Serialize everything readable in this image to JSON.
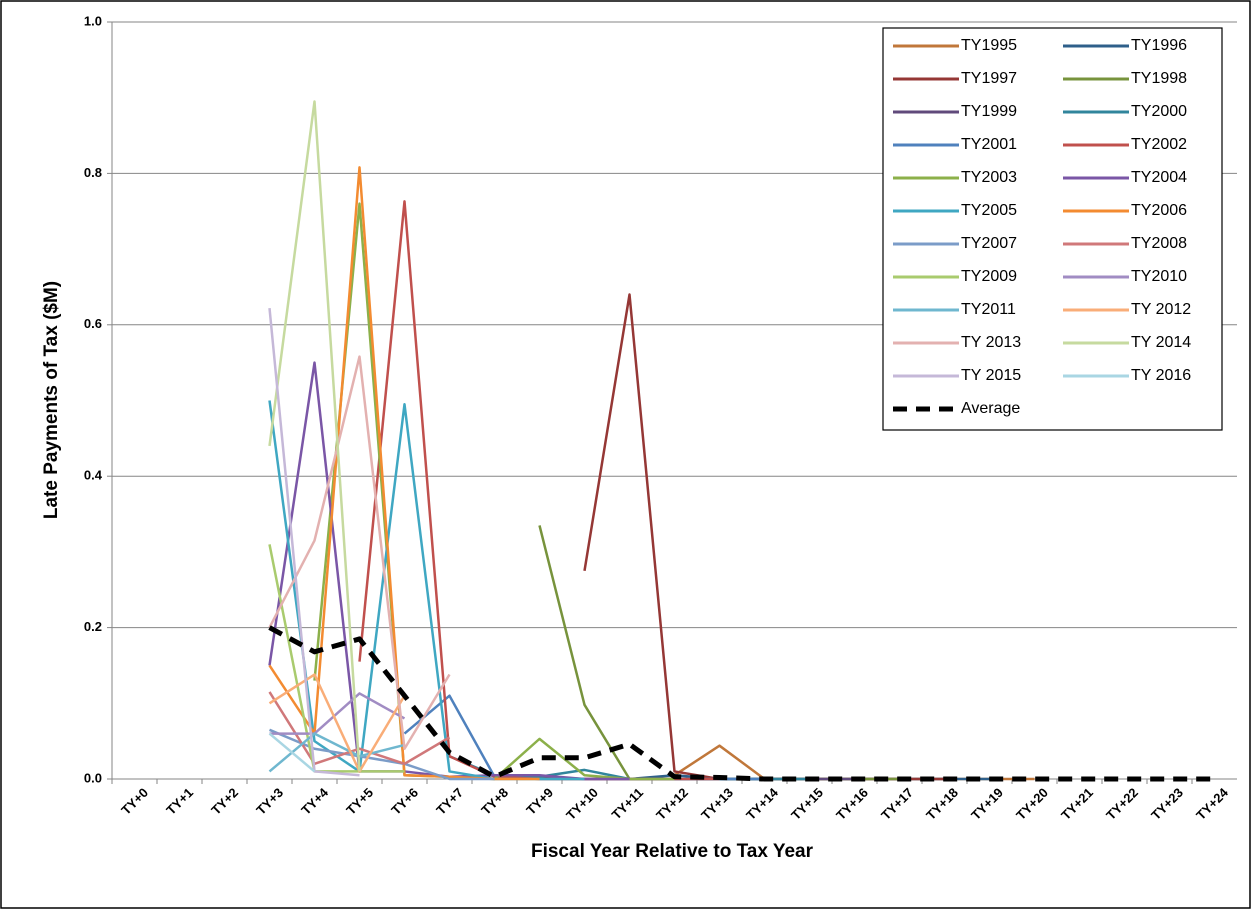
{
  "chart_data": {
    "type": "line",
    "y_label": "Late Payments of Tax ($M)",
    "x_label": "Fiscal Year Relative to Tax Year",
    "categories": [
      "TY+0",
      "TY+1",
      "TY+2",
      "TY+3",
      "TY+4",
      "TY+5",
      "TY+6",
      "TY+7",
      "TY+8",
      "TY+9",
      "TY+10",
      "TY+11",
      "TY+12",
      "TY+13",
      "TY+14",
      "TY+15",
      "TY+16",
      "TY+17",
      "TY+18",
      "TY+19",
      "TY+20",
      "TY+21",
      "TY+22",
      "TY+23",
      "TY+24"
    ],
    "ylim": [
      0,
      1
    ],
    "yticks": [
      {
        "value": 0,
        "label": "0.0"
      },
      0.2,
      0.4,
      0.6,
      0.8,
      {
        "value": 1,
        "label": "1.0"
      }
    ],
    "grid": true,
    "legend": "top-right",
    "series": [
      {
        "name": "TY1995",
        "color": "#c0773a",
        "values": [
          null,
          null,
          null,
          null,
          null,
          null,
          null,
          null,
          null,
          null,
          null,
          null,
          0.005,
          0.044,
          0,
          0,
          0,
          0,
          0,
          0,
          0,
          null,
          null,
          null,
          null
        ]
      },
      {
        "name": "TY1996",
        "color": "#2e5f8a",
        "values": [
          null,
          null,
          null,
          null,
          null,
          null,
          null,
          null,
          null,
          null,
          null,
          0,
          0.005,
          0,
          0,
          0,
          0,
          0,
          0,
          0,
          null,
          null,
          null,
          null,
          null
        ]
      },
      {
        "name": "TY1997",
        "color": "#953735",
        "values": [
          null,
          null,
          null,
          null,
          null,
          null,
          null,
          null,
          null,
          null,
          0.275,
          0.64,
          0.01,
          0,
          0,
          0,
          0,
          0,
          0,
          null,
          null,
          null,
          null,
          null,
          null
        ]
      },
      {
        "name": "TY1998",
        "color": "#77933c",
        "values": [
          null,
          null,
          null,
          null,
          null,
          null,
          null,
          null,
          null,
          0.335,
          0.098,
          0,
          0,
          0,
          0,
          0,
          0,
          0,
          null,
          null,
          null,
          null,
          null,
          null,
          null
        ]
      },
      {
        "name": "TY1999",
        "color": "#604a7b",
        "values": [
          null,
          null,
          null,
          null,
          null,
          null,
          null,
          null,
          0.005,
          0.003,
          0,
          0,
          0,
          0,
          0,
          0,
          0,
          null,
          null,
          null,
          null,
          null,
          null,
          null,
          null
        ]
      },
      {
        "name": "TY2000",
        "color": "#31859c",
        "values": [
          null,
          null,
          null,
          null,
          null,
          null,
          null,
          0.03,
          0.005,
          0.003,
          0.012,
          0,
          0,
          0,
          0,
          0,
          null,
          null,
          null,
          null,
          null,
          null,
          null,
          null,
          null
        ]
      },
      {
        "name": "TY2001",
        "color": "#4f81bd",
        "values": [
          null,
          null,
          null,
          null,
          null,
          null,
          0.06,
          0.11,
          0.003,
          0,
          0,
          0,
          0,
          0,
          0,
          null,
          null,
          null,
          null,
          null,
          null,
          null,
          null,
          null,
          null
        ]
      },
      {
        "name": "TY2002",
        "color": "#c0504d",
        "values": [
          null,
          null,
          null,
          null,
          null,
          0.155,
          0.763,
          0.03,
          0.003,
          0,
          0,
          0,
          0,
          0,
          null,
          null,
          null,
          null,
          null,
          null,
          null,
          null,
          null,
          null,
          null
        ]
      },
      {
        "name": "TY2003",
        "color": "#8cb04a",
        "values": [
          null,
          null,
          null,
          null,
          0.13,
          0.76,
          0.005,
          0.003,
          0,
          0.053,
          0.005,
          0,
          0,
          null,
          null,
          null,
          null,
          null,
          null,
          null,
          null,
          null,
          null,
          null,
          null
        ]
      },
      {
        "name": "TY2004",
        "color": "#7a56a6",
        "values": [
          null,
          null,
          null,
          0.15,
          0.55,
          0.01,
          0.01,
          0.003,
          0.005,
          0.005,
          0,
          0,
          null,
          null,
          null,
          null,
          null,
          null,
          null,
          null,
          null,
          null,
          null,
          null,
          null
        ]
      },
      {
        "name": "TY2005",
        "color": "#3fa7c2",
        "values": [
          null,
          null,
          null,
          0.5,
          0.05,
          0.01,
          0.495,
          0.01,
          0,
          0,
          0,
          null,
          null,
          null,
          null,
          null,
          null,
          null,
          null,
          null,
          null,
          null,
          null,
          null,
          null
        ]
      },
      {
        "name": "TY2006",
        "color": "#f38b31",
        "values": [
          null,
          null,
          null,
          0.15,
          0.06,
          0.808,
          0.005,
          0.003,
          0,
          0,
          null,
          null,
          null,
          null,
          null,
          null,
          null,
          null,
          null,
          null,
          null,
          null,
          null,
          null,
          null
        ]
      },
      {
        "name": "TY2007",
        "color": "#7b9cc8",
        "values": [
          null,
          null,
          null,
          0.065,
          0.04,
          0.03,
          0.02,
          0,
          0,
          null,
          null,
          null,
          null,
          null,
          null,
          null,
          null,
          null,
          null,
          null,
          null,
          null,
          null,
          null,
          null
        ]
      },
      {
        "name": "TY2008",
        "color": "#d0787a",
        "values": [
          null,
          null,
          null,
          0.115,
          0.02,
          0.04,
          0.02,
          0.055,
          null,
          null,
          null,
          null,
          null,
          null,
          null,
          null,
          null,
          null,
          null,
          null,
          null,
          null,
          null,
          null,
          null
        ]
      },
      {
        "name": "TY2009",
        "color": "#a9cb6e",
        "values": [
          null,
          null,
          null,
          0.31,
          0.01,
          0.01,
          0.01,
          null,
          null,
          null,
          null,
          null,
          null,
          null,
          null,
          null,
          null,
          null,
          null,
          null,
          null,
          null,
          null,
          null,
          null
        ]
      },
      {
        "name": "TY2010",
        "color": "#a18cc3",
        "values": [
          null,
          null,
          null,
          0.06,
          0.06,
          0.113,
          0.08,
          null,
          null,
          null,
          null,
          null,
          null,
          null,
          null,
          null,
          null,
          null,
          null,
          null,
          null,
          null,
          null,
          null,
          null
        ]
      },
      {
        "name": "TY2011",
        "color": "#6fb7cf",
        "values": [
          null,
          null,
          null,
          0.01,
          0.06,
          0.03,
          0.045,
          null,
          null,
          null,
          null,
          null,
          null,
          null,
          null,
          null,
          null,
          null,
          null,
          null,
          null,
          null,
          null,
          null,
          null
        ]
      },
      {
        "name": "TY 2012",
        "color": "#f9ad78",
        "values": [
          null,
          null,
          null,
          0.1,
          0.138,
          0.01,
          0.11,
          null,
          null,
          null,
          null,
          null,
          null,
          null,
          null,
          null,
          null,
          null,
          null,
          null,
          null,
          null,
          null,
          null,
          null
        ]
      },
      {
        "name": "TY 2013",
        "color": "#e3b1b0",
        "values": [
          null,
          null,
          null,
          0.2,
          0.315,
          0.558,
          0.04,
          0.138,
          null,
          null,
          null,
          null,
          null,
          null,
          null,
          null,
          null,
          null,
          null,
          null,
          null,
          null,
          null,
          null,
          null
        ]
      },
      {
        "name": "TY 2014",
        "color": "#c6da9f",
        "values": [
          null,
          null,
          null,
          0.44,
          0.895,
          0.01,
          null,
          null,
          null,
          null,
          null,
          null,
          null,
          null,
          null,
          null,
          null,
          null,
          null,
          null,
          null,
          null,
          null,
          null,
          null
        ]
      },
      {
        "name": "TY 2015",
        "color": "#c5b8d8",
        "values": [
          null,
          null,
          null,
          0.622,
          0.01,
          0.005,
          null,
          null,
          null,
          null,
          null,
          null,
          null,
          null,
          null,
          null,
          null,
          null,
          null,
          null,
          null,
          null,
          null,
          null,
          null
        ]
      },
      {
        "name": "TY 2016",
        "color": "#a9d6e3",
        "values": [
          null,
          null,
          null,
          0.06,
          0.01,
          null,
          null,
          null,
          null,
          null,
          null,
          null,
          null,
          null,
          null,
          null,
          null,
          null,
          null,
          null,
          null,
          null,
          null,
          null,
          null
        ]
      },
      {
        "name": "Average",
        "color": "#000000",
        "line_style": "dashed",
        "values": [
          null,
          null,
          null,
          0.2,
          0.168,
          0.185,
          0.11,
          0.035,
          0.003,
          0.028,
          0.028,
          0.046,
          0.003,
          0.002,
          0,
          0,
          0,
          0,
          0,
          0,
          0,
          0,
          0,
          0,
          0
        ]
      }
    ]
  }
}
